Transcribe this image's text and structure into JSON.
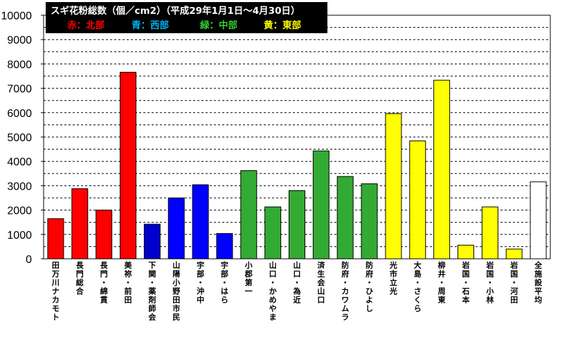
{
  "chart_data": {
    "type": "bar",
    "title": "スギ花粉総数（個／cm2）（平成29年1月1日～4月30日）",
    "legend": [
      {
        "label": "赤：北部",
        "color": "#ff0000"
      },
      {
        "label": "青：西部",
        "color": "#00b0f0"
      },
      {
        "label": "緑：中部",
        "color": "#33cc33"
      },
      {
        "label": "黄：東部",
        "color": "#ffff00"
      }
    ],
    "legend_position": "top-left",
    "ylim": [
      0,
      10000
    ],
    "ytick_labels": [
      "0",
      "1000",
      "2000",
      "3000",
      "4000",
      "5000",
      "6000",
      "7000",
      "8000",
      "9000",
      "10000"
    ],
    "grid": "dashed horizontal every 500",
    "categories": [
      "田万川ナカモト",
      "長門総合",
      "長門・綿貫",
      "美祢・前田",
      "下関・薬剤師会",
      "山陽小野田市民",
      "宇部・沖中",
      "宇部・はら",
      "小郡第一",
      "山口・かめやま",
      "山口・為近",
      "済生会山口",
      "防府・カワムラ",
      "防府・ひよし",
      "光市立光",
      "大島・さくら",
      "柳井・周東",
      "岩国・石本",
      "岩国・小林",
      "岩国・河田",
      "全施設平均"
    ],
    "values": [
      1650,
      2880,
      2000,
      7660,
      1420,
      2500,
      3040,
      1040,
      3620,
      2130,
      2800,
      4430,
      3380,
      3080,
      5960,
      4840,
      7330,
      560,
      2130,
      400,
      3160
    ],
    "colors": [
      "#ff0000",
      "#ff0000",
      "#ff0000",
      "#ff0000",
      "#0000cc",
      "#0000ff",
      "#0000ff",
      "#0000ff",
      "#33aa33",
      "#33aa33",
      "#33aa33",
      "#33aa33",
      "#33aa33",
      "#33aa33",
      "#ffff00",
      "#ffff00",
      "#ffff00",
      "#ffff00",
      "#ffff00",
      "#ffff00",
      "#ffffff"
    ]
  }
}
